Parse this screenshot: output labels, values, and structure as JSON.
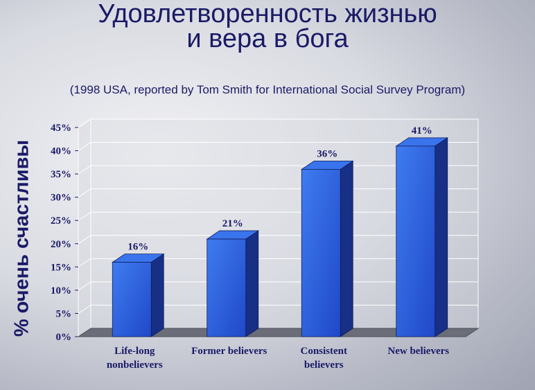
{
  "slide": {
    "title_line1": "Удовлетворенность жизнью",
    "title_line2": "и вера в бога",
    "subtitle": "(1998 USA, reported by Tom Smith for International Social Survey Program)"
  },
  "chart_data": {
    "type": "bar",
    "title": "",
    "xlabel": "",
    "ylabel": "% очень счастливы",
    "categories": [
      [
        "Life-long",
        "nonbelievers"
      ],
      [
        "Former believers"
      ],
      [
        "Consistent",
        "believers"
      ],
      [
        "New believers"
      ]
    ],
    "values": [
      16,
      21,
      36,
      41
    ],
    "value_labels": [
      "16%",
      "21%",
      "36%",
      "41%"
    ],
    "ylim": [
      0,
      45
    ],
    "yticks": [
      0,
      5,
      10,
      15,
      20,
      25,
      30,
      35,
      40,
      45
    ],
    "ytick_labels": [
      "0%",
      "5%",
      "10%",
      "15%",
      "20%",
      "25%",
      "30%",
      "35%",
      "40%",
      "45%"
    ],
    "grid": true,
    "style": "3d",
    "colors": {
      "bar_front": "#2f63dc",
      "bar_side": "#182f86",
      "bar_top": "#3a74ec",
      "text": "#1a1a66",
      "floor": "#6b6e78",
      "wall": "#d8dae0"
    }
  }
}
